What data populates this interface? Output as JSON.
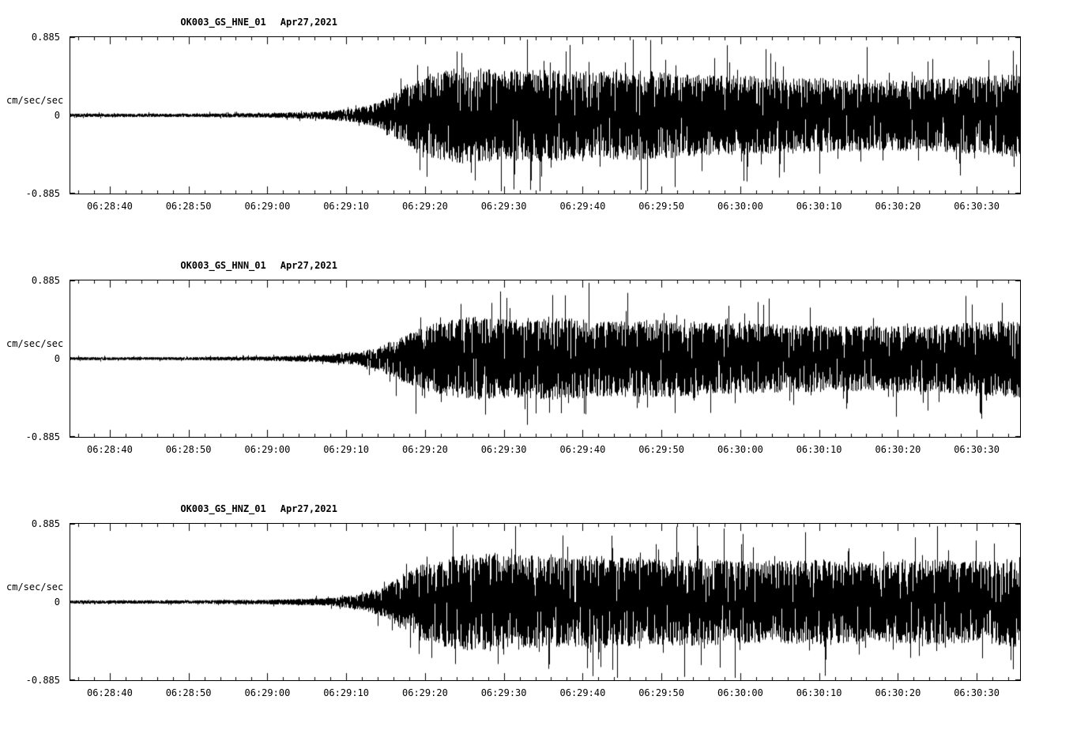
{
  "page": {
    "background_color": "#ffffff",
    "trace_color": "#000000",
    "units_label": "cm/sec/sec"
  },
  "chart_data": [
    {
      "type": "line",
      "title": "OK003_GS_HNE_01",
      "date": "Apr27,2021",
      "ylabel": "cm/sec/sec",
      "ylim": [
        -0.885,
        0.885
      ],
      "yticks": [
        "0.885",
        "0",
        "-0.885"
      ],
      "x_start_seconds": 0,
      "x_end_seconds": 120.5,
      "x_start_time": "06:28:35",
      "xtick_seconds": [
        5,
        15,
        25,
        35,
        45,
        55,
        65,
        75,
        85,
        95,
        105,
        115
      ],
      "xtick_labels": [
        "06:28:40",
        "06:28:50",
        "06:29:00",
        "06:29:10",
        "06:29:20",
        "06:29:30",
        "06:29:40",
        "06:29:50",
        "06:30:00",
        "06:30:10",
        "06:30:20",
        "06:30:30"
      ],
      "minor_tick_interval_seconds": 2,
      "grid": false,
      "legend": "none",
      "envelope_units": "fraction of full scale (0.885 cm/sec/sec) vs seconds after 06:28:35",
      "envelope": [
        [
          0,
          0.022
        ],
        [
          15,
          0.022
        ],
        [
          25,
          0.03
        ],
        [
          32,
          0.05
        ],
        [
          36,
          0.09
        ],
        [
          39,
          0.16
        ],
        [
          41,
          0.28
        ],
        [
          43,
          0.42
        ],
        [
          46,
          0.55
        ],
        [
          50,
          0.62
        ],
        [
          55,
          0.58
        ],
        [
          60,
          0.6
        ],
        [
          65,
          0.55
        ],
        [
          72,
          0.58
        ],
        [
          80,
          0.52
        ],
        [
          88,
          0.5
        ],
        [
          95,
          0.48
        ],
        [
          103,
          0.45
        ],
        [
          110,
          0.47
        ],
        [
          116,
          0.5
        ],
        [
          120.5,
          0.55
        ]
      ]
    },
    {
      "type": "line",
      "title": "OK003_GS_HNN_01",
      "date": "Apr27,2021",
      "ylabel": "cm/sec/sec",
      "ylim": [
        -0.885,
        0.885
      ],
      "yticks": [
        "0.885",
        "0",
        "-0.885"
      ],
      "x_start_seconds": 0,
      "x_end_seconds": 120.5,
      "x_start_time": "06:28:35",
      "xtick_seconds": [
        5,
        15,
        25,
        35,
        45,
        55,
        65,
        75,
        85,
        95,
        105,
        115
      ],
      "xtick_labels": [
        "06:28:40",
        "06:28:50",
        "06:29:00",
        "06:29:10",
        "06:29:20",
        "06:29:30",
        "06:29:40",
        "06:29:50",
        "06:30:00",
        "06:30:10",
        "06:30:20",
        "06:30:30"
      ],
      "minor_tick_interval_seconds": 2,
      "grid": false,
      "legend": "none",
      "envelope_units": "fraction of full scale (0.885 cm/sec/sec) vs seconds after 06:28:35",
      "envelope": [
        [
          0,
          0.02
        ],
        [
          15,
          0.02
        ],
        [
          25,
          0.028
        ],
        [
          32,
          0.045
        ],
        [
          36,
          0.08
        ],
        [
          39,
          0.14
        ],
        [
          41,
          0.25
        ],
        [
          44,
          0.38
        ],
        [
          47,
          0.48
        ],
        [
          51,
          0.54
        ],
        [
          56,
          0.5
        ],
        [
          62,
          0.53
        ],
        [
          68,
          0.48
        ],
        [
          75,
          0.5
        ],
        [
          82,
          0.46
        ],
        [
          90,
          0.44
        ],
        [
          98,
          0.42
        ],
        [
          105,
          0.42
        ],
        [
          112,
          0.45
        ],
        [
          120.5,
          0.5
        ]
      ]
    },
    {
      "type": "line",
      "title": "OK003_GS_HNZ_01",
      "date": "Apr27,2021",
      "ylabel": "cm/sec/sec",
      "ylim": [
        -0.885,
        0.885
      ],
      "yticks": [
        "0.885",
        "0",
        "-0.885"
      ],
      "x_start_seconds": 0,
      "x_end_seconds": 120.5,
      "x_start_time": "06:28:35",
      "xtick_seconds": [
        5,
        15,
        25,
        35,
        45,
        55,
        65,
        75,
        85,
        95,
        105,
        115
      ],
      "xtick_labels": [
        "06:28:40",
        "06:28:50",
        "06:29:00",
        "06:29:10",
        "06:29:20",
        "06:29:30",
        "06:29:40",
        "06:29:50",
        "06:30:00",
        "06:30:10",
        "06:30:20",
        "06:30:30"
      ],
      "minor_tick_interval_seconds": 2,
      "grid": false,
      "legend": "none",
      "envelope_units": "fraction of full scale (0.885 cm/sec/sec) vs seconds after 06:28:35",
      "envelope": [
        [
          0,
          0.022
        ],
        [
          15,
          0.022
        ],
        [
          25,
          0.03
        ],
        [
          33,
          0.05
        ],
        [
          37,
          0.1
        ],
        [
          40,
          0.2
        ],
        [
          42,
          0.35
        ],
        [
          45,
          0.5
        ],
        [
          49,
          0.62
        ],
        [
          54,
          0.64
        ],
        [
          60,
          0.58
        ],
        [
          66,
          0.6
        ],
        [
          73,
          0.55
        ],
        [
          80,
          0.56
        ],
        [
          88,
          0.52
        ],
        [
          95,
          0.55
        ],
        [
          102,
          0.5
        ],
        [
          108,
          0.55
        ],
        [
          114,
          0.52
        ],
        [
          120.5,
          0.58
        ]
      ]
    }
  ]
}
